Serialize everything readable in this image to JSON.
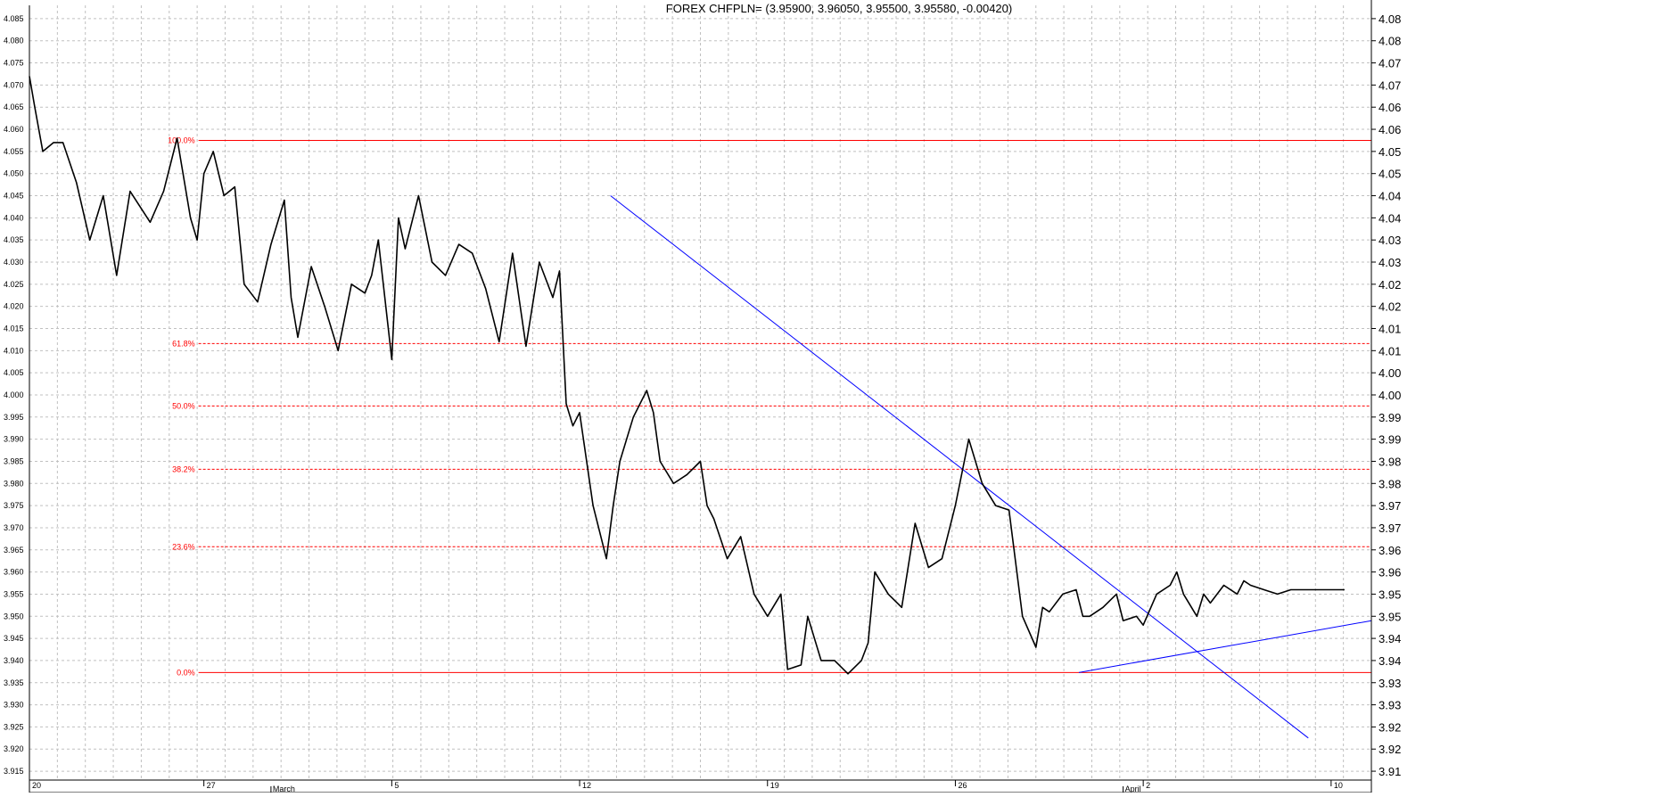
{
  "title": "FOREX CHFPLN= (3.95900, 3.96050, 3.95500, 3.95580, -0.00420)",
  "chart_data": {
    "type": "line",
    "title": "FOREX CHFPLN= (3.95900, 3.96050, 3.95500, 3.95580, -0.00420)",
    "symbol": "CHFPLN=",
    "quote": {
      "open": 3.959,
      "high": 3.9605,
      "low": 3.955,
      "close": 3.9558,
      "change": -0.0042
    },
    "ylim": [
      3.913,
      4.088
    ],
    "y_ticks_left": [
      "4.085",
      "4.080",
      "4.075",
      "4.070",
      "4.065",
      "4.060",
      "4.055",
      "4.050",
      "4.045",
      "4.040",
      "4.035",
      "4.030",
      "4.025",
      "4.020",
      "4.015",
      "4.010",
      "4.005",
      "4.000",
      "3.995",
      "3.990",
      "3.985",
      "3.980",
      "3.975",
      "3.970",
      "3.965",
      "3.960",
      "3.955",
      "3.950",
      "3.945",
      "3.940",
      "3.935",
      "3.930",
      "3.925",
      "3.920",
      "3.915"
    ],
    "y_ticks_right": [
      "4.08",
      "4.08",
      "4.07",
      "4.07",
      "4.06",
      "4.06",
      "4.05",
      "4.05",
      "4.04",
      "4.04",
      "4.03",
      "4.03",
      "4.02",
      "4.02",
      "4.01",
      "4.01",
      "4.00",
      "4.00",
      "3.99",
      "3.99",
      "3.98",
      "3.98",
      "3.97",
      "3.97",
      "3.96",
      "3.96",
      "3.95",
      "3.95",
      "3.94",
      "3.94",
      "3.93",
      "3.93",
      "3.92",
      "3.92",
      "3.91"
    ],
    "y_ticks_right_values": [
      4.085,
      4.08,
      4.075,
      4.07,
      4.065,
      4.06,
      4.055,
      4.05,
      4.045,
      4.04,
      4.035,
      4.03,
      4.025,
      4.02,
      4.015,
      4.01,
      4.005,
      4.0,
      3.995,
      3.99,
      3.985,
      3.98,
      3.975,
      3.97,
      3.965,
      3.96,
      3.955,
      3.95,
      3.945,
      3.94,
      3.935,
      3.93,
      3.925,
      3.92,
      3.915
    ],
    "x_ticks": [
      {
        "label": "20",
        "pos": 0.0
      },
      {
        "label": "27",
        "pos": 0.13
      },
      {
        "label": "5",
        "pos": 0.27
      },
      {
        "label": "12",
        "pos": 0.41
      },
      {
        "label": "19",
        "pos": 0.55
      },
      {
        "label": "26",
        "pos": 0.69
      },
      {
        "label": "2",
        "pos": 0.83
      },
      {
        "label": "10",
        "pos": 0.97
      }
    ],
    "month_labels": [
      {
        "label": "March",
        "pos": 0.18
      },
      {
        "label": "April",
        "pos": 0.815
      }
    ],
    "series": [
      {
        "color": "#000000",
        "x": [
          0.0,
          0.004,
          0.01,
          0.018,
          0.025,
          0.035,
          0.045,
          0.055,
          0.065,
          0.075,
          0.09,
          0.1,
          0.11,
          0.12,
          0.125,
          0.13,
          0.137,
          0.145,
          0.153,
          0.16,
          0.17,
          0.18,
          0.19,
          0.195,
          0.2,
          0.21,
          0.22,
          0.23,
          0.24,
          0.25,
          0.255,
          0.26,
          0.27,
          0.275,
          0.28,
          0.29,
          0.3,
          0.31,
          0.32,
          0.33,
          0.34,
          0.35,
          0.36,
          0.37,
          0.38,
          0.39,
          0.395,
          0.4,
          0.405,
          0.41,
          0.42,
          0.43,
          0.435,
          0.44,
          0.45,
          0.46,
          0.465,
          0.47,
          0.48,
          0.49,
          0.5,
          0.505,
          0.51,
          0.52,
          0.53,
          0.54,
          0.55,
          0.56,
          0.565,
          0.575,
          0.58,
          0.59,
          0.6,
          0.61,
          0.62,
          0.625,
          0.63,
          0.64,
          0.65,
          0.66,
          0.67,
          0.68,
          0.69,
          0.7,
          0.71,
          0.72,
          0.73,
          0.74,
          0.75,
          0.755,
          0.76,
          0.77,
          0.78,
          0.785,
          0.79,
          0.8,
          0.81,
          0.815,
          0.825,
          0.83,
          0.84,
          0.85,
          0.855,
          0.86,
          0.87,
          0.875,
          0.88,
          0.89,
          0.9,
          0.905,
          0.91,
          0.92,
          0.93,
          0.94,
          0.95,
          0.96,
          0.965,
          0.97,
          0.975,
          0.98
        ],
        "y": [
          4.072,
          4.065,
          4.055,
          4.057,
          4.057,
          4.048,
          4.035,
          4.045,
          4.027,
          4.046,
          4.039,
          4.046,
          4.058,
          4.04,
          4.035,
          4.05,
          4.055,
          4.045,
          4.047,
          4.025,
          4.021,
          4.034,
          4.044,
          4.022,
          4.013,
          4.029,
          4.02,
          4.01,
          4.025,
          4.023,
          4.027,
          4.035,
          4.008,
          4.04,
          4.033,
          4.045,
          4.03,
          4.027,
          4.034,
          4.032,
          4.024,
          4.012,
          4.032,
          4.011,
          4.03,
          4.022,
          4.028,
          3.998,
          3.993,
          3.996,
          3.975,
          3.963,
          3.975,
          3.985,
          3.995,
          4.001,
          3.996,
          3.985,
          3.98,
          3.982,
          3.985,
          3.975,
          3.972,
          3.963,
          3.968,
          3.955,
          3.95,
          3.955,
          3.938,
          3.939,
          3.95,
          3.94,
          3.94,
          3.937,
          3.94,
          3.944,
          3.96,
          3.955,
          3.952,
          3.971,
          3.961,
          3.963,
          3.975,
          3.99,
          3.98,
          3.975,
          3.974,
          3.95,
          3.943,
          3.952,
          3.951,
          3.955,
          3.956,
          3.95,
          3.95,
          3.952,
          3.955,
          3.949,
          3.95,
          3.948,
          3.955,
          3.957,
          3.96,
          3.955,
          3.95,
          3.955,
          3.953,
          3.957,
          3.955,
          3.958,
          3.957,
          3.956,
          3.955,
          3.956,
          3.956,
          3.956,
          3.956,
          3.956,
          3.956,
          3.956
        ]
      }
    ],
    "fibonacci_levels": [
      {
        "label": "100.0%",
        "value": 4.0575
      },
      {
        "label": "61.8%",
        "value": 4.0116
      },
      {
        "label": "50.0%",
        "value": 3.9975
      },
      {
        "label": "38.2%",
        "value": 3.9832
      },
      {
        "label": "23.6%",
        "value": 3.9657
      },
      {
        "label": "0.0%",
        "value": 3.9373
      }
    ],
    "trendlines": [
      {
        "color": "#0000ff",
        "x1": 0.433,
        "y1": 4.045,
        "x2": 0.953,
        "y2": 3.9225
      },
      {
        "color": "#0000ff",
        "x1": 0.782,
        "y1": 3.9373,
        "x2": 1.0,
        "y2": 3.949
      }
    ],
    "grid": true,
    "colors": {
      "price": "#000000",
      "fib": "#ff0000",
      "trend": "#0000ff",
      "grid": "#c0c0c0"
    }
  }
}
